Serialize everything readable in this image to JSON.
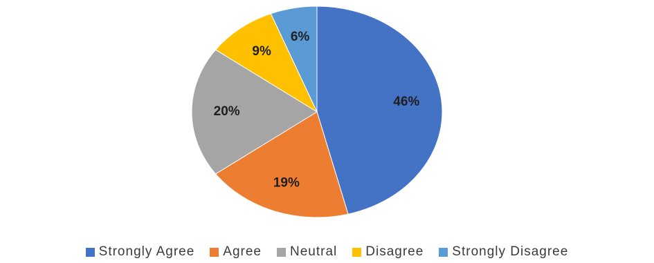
{
  "chart_data": {
    "type": "pie",
    "title": "",
    "categories": [
      "Strongly Agree",
      "Agree",
      "Neutral",
      "Disagree",
      "Strongly Disagree"
    ],
    "values": [
      46,
      19,
      20,
      9,
      6
    ],
    "labels": [
      "46%",
      "19%",
      "20%",
      "9%",
      "6%"
    ],
    "colors": [
      "#4472C4",
      "#ED7D31",
      "#A5A5A5",
      "#FFC000",
      "#5B9BD5"
    ],
    "legend_position": "bottom"
  },
  "legend": {
    "items": [
      {
        "label": "Strongly Agree",
        "color": "#4472C4"
      },
      {
        "label": "Agree",
        "color": "#ED7D31"
      },
      {
        "label": "Neutral",
        "color": "#A5A5A5"
      },
      {
        "label": "Disagree",
        "color": "#FFC000"
      },
      {
        "label": "Strongly Disagree",
        "color": "#5B9BD5"
      }
    ]
  }
}
